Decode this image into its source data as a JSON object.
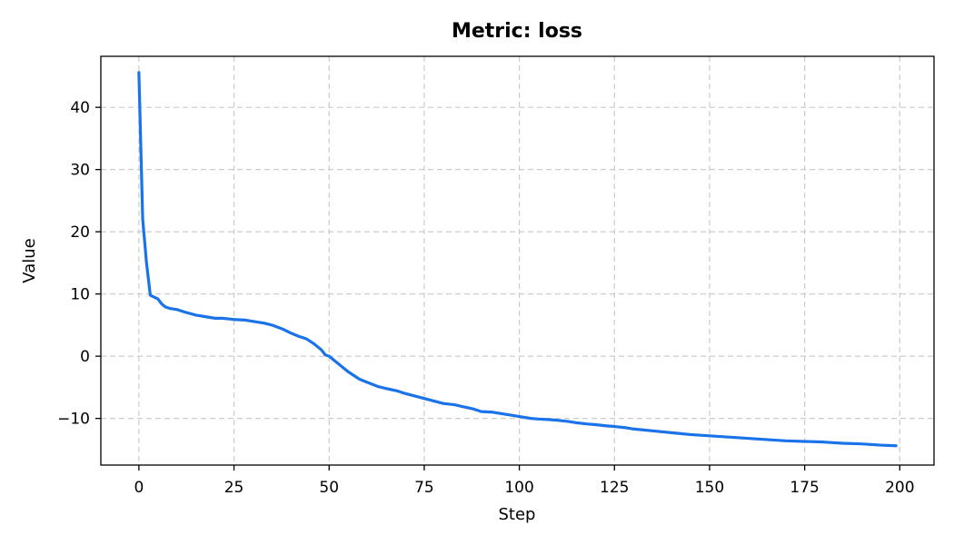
{
  "chart_data": {
    "type": "line",
    "title": "Metric: loss",
    "xlabel": "Step",
    "ylabel": "Value",
    "xlim": [
      -10,
      209
    ],
    "ylim": [
      -17.5,
      48.2
    ],
    "xticks": [
      0,
      25,
      50,
      75,
      100,
      125,
      150,
      175,
      200
    ],
    "xtick_labels": [
      "0",
      "25",
      "50",
      "75",
      "100",
      "125",
      "150",
      "175",
      "200"
    ],
    "yticks": [
      -10,
      0,
      10,
      20,
      30,
      40
    ],
    "ytick_labels": [
      "−10",
      "0",
      "10",
      "20",
      "30",
      "40"
    ],
    "grid": true,
    "series_color": "#1a73e8",
    "series": [
      {
        "x": [
          0,
          1,
          2,
          3,
          5,
          6,
          7,
          8,
          10,
          12,
          15,
          18,
          20,
          22,
          25,
          28,
          30,
          33,
          35,
          38,
          40,
          42,
          44,
          46,
          48,
          49,
          50,
          52,
          55,
          58,
          60,
          63,
          65,
          68,
          70,
          75,
          80,
          83,
          85,
          88,
          90,
          93,
          95,
          98,
          100,
          103,
          105,
          108,
          110,
          113,
          115,
          118,
          120,
          123,
          125,
          128,
          130,
          135,
          140,
          145,
          150,
          155,
          160,
          165,
          170,
          175,
          180,
          185,
          190,
          195,
          199
        ],
        "y": [
          45.6,
          22.0,
          15.0,
          9.8,
          9.2,
          8.4,
          7.9,
          7.7,
          7.5,
          7.1,
          6.6,
          6.3,
          6.1,
          6.1,
          5.9,
          5.8,
          5.6,
          5.3,
          5.0,
          4.3,
          3.7,
          3.2,
          2.8,
          2.0,
          1.0,
          0.2,
          0.0,
          -1.0,
          -2.5,
          -3.7,
          -4.2,
          -4.9,
          -5.2,
          -5.6,
          -6.0,
          -6.8,
          -7.6,
          -7.8,
          -8.1,
          -8.5,
          -8.9,
          -9.0,
          -9.2,
          -9.5,
          -9.7,
          -10.0,
          -10.1,
          -10.2,
          -10.3,
          -10.5,
          -10.7,
          -10.9,
          -11.0,
          -11.2,
          -11.3,
          -11.5,
          -11.7,
          -12.0,
          -12.3,
          -12.6,
          -12.8,
          -13.0,
          -13.2,
          -13.4,
          -13.6,
          -13.7,
          -13.8,
          -14.0,
          -14.1,
          -14.3,
          -14.4
        ]
      }
    ]
  }
}
